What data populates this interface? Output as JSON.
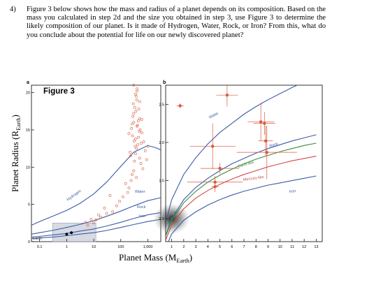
{
  "question": {
    "number": "4)",
    "text": "Figure 3 below shows how the mass and radius of a planet depends on its composition. Based on the mass you calculated in step 2d and the size you obtained in step 3, use Figure 3 to determine the likely composition of our planet. Is it made of Hydrogen, Water, Rock, or Iron? From this, what do you conclude about the potential for life on our newly discovered planet?"
  },
  "figure": {
    "title": "Figure 3",
    "y_axis_label": "Planet Radius (R",
    "y_axis_sub": "Earth",
    "x_axis_label": "Planet Mass (M",
    "x_axis_sub": "Earth",
    "panel_a_letter": "a",
    "panel_b_letter": "b",
    "colors": {
      "curves": "#3b5ba8",
      "earthlike": "#3c8a3c",
      "mercury": "#d24848",
      "points": "#d9593d"
    }
  },
  "chart_data": [
    {
      "type": "scatter",
      "panel": "a",
      "x_scale": "log",
      "xlim": [
        0.05,
        3000
      ],
      "ylim": [
        0,
        21
      ],
      "x_ticks": [
        "0.1",
        "1",
        "10",
        "100",
        "1,000"
      ],
      "y_ticks": [
        "0",
        "5",
        "10",
        "15",
        "20"
      ],
      "series_labels": [
        "Hydrogen",
        "Water",
        "Rock",
        "Iron"
      ],
      "corner_label": "Earth",
      "curves": [
        {
          "name": "Hydrogen",
          "x": [
            0.05,
            0.1,
            0.3,
            1,
            3,
            10,
            30,
            100,
            300,
            1000,
            2000,
            3000
          ],
          "y": [
            2.2,
            2.7,
            3.4,
            4.2,
            5.1,
            6.4,
            8.0,
            10.1,
            12.0,
            12.9,
            12.6,
            12.3
          ]
        },
        {
          "name": "Water",
          "x": [
            0.05,
            0.1,
            0.3,
            1,
            3,
            10,
            30,
            100,
            300,
            1000,
            3000
          ],
          "y": [
            1.0,
            1.2,
            1.5,
            1.9,
            2.3,
            2.8,
            3.4,
            4.1,
            4.8,
            5.5,
            5.9
          ]
        },
        {
          "name": "Rock",
          "x": [
            0.05,
            0.1,
            0.3,
            1,
            3,
            10,
            30,
            100,
            300,
            1000,
            3000
          ],
          "y": [
            0.6,
            0.7,
            0.9,
            1.1,
            1.4,
            1.7,
            2.1,
            2.6,
            3.1,
            3.6,
            3.9
          ]
        },
        {
          "name": "Iron",
          "x": [
            0.05,
            0.1,
            0.3,
            1,
            3,
            10,
            30,
            100,
            300,
            1000,
            3000
          ],
          "y": [
            0.4,
            0.5,
            0.6,
            0.8,
            1.0,
            1.2,
            1.5,
            1.9,
            2.3,
            2.7,
            3.0
          ]
        }
      ],
      "planets": {
        "x": [
          200,
          250,
          300,
          350,
          400,
          450,
          500,
          300,
          330,
          380,
          420,
          480,
          260,
          280,
          310,
          360,
          390,
          440,
          520,
          560,
          220,
          230,
          270,
          290,
          340,
          370,
          410,
          460,
          600,
          700,
          800,
          900,
          1000,
          500,
          550,
          650,
          320,
          300,
          350,
          400,
          260,
          240,
          600,
          200,
          180,
          150,
          120,
          90,
          70,
          50,
          40,
          30,
          25,
          18,
          15,
          12,
          10,
          8,
          6,
          5,
          300,
          400,
          500,
          350,
          380
        ],
        "y": [
          14.5,
          15.2,
          16.0,
          13.8,
          15.5,
          14.0,
          16.5,
          17.2,
          18.0,
          12.5,
          13.0,
          14.8,
          15.8,
          16.8,
          13.5,
          17.5,
          19.0,
          16.2,
          15.0,
          13.2,
          12.0,
          11.5,
          14.2,
          18.5,
          12.8,
          19.5,
          15.6,
          17.8,
          14.6,
          13.4,
          12.2,
          11.0,
          12.8,
          11.2,
          10.5,
          9.8,
          10.8,
          9.5,
          11.8,
          20.2,
          9.0,
          8.2,
          16.4,
          7.2,
          6.6,
          7.8,
          6.0,
          5.4,
          4.8,
          4.0,
          6.2,
          3.8,
          4.5,
          3.3,
          3.6,
          2.9,
          2.5,
          3.0,
          2.2,
          2.6,
          21.0,
          20.5,
          18.8,
          19.8,
          8.6
        ]
      },
      "highlight": [
        {
          "x": 1,
          "y": 1
        },
        {
          "x": 1.5,
          "y": 1.2
        }
      ]
    },
    {
      "type": "scatter",
      "panel": "b",
      "xlim": [
        0.5,
        13.5
      ],
      "ylim": [
        0.7,
        2.75
      ],
      "x_ticks": [
        "1",
        "2",
        "3",
        "4",
        "5",
        "6",
        "7",
        "8",
        "9",
        "10",
        "11",
        "12",
        "13"
      ],
      "y_ticks": [
        "1.0",
        "1.5",
        "2.0",
        "2.5"
      ],
      "series_labels": [
        "Water",
        "Rock",
        "Earth-like",
        "Mercury-like",
        "Iron"
      ],
      "curves": [
        {
          "name": "Water",
          "x": [
            0.5,
            1,
            2,
            3,
            4,
            5,
            6,
            7,
            8,
            9,
            10,
            11,
            12,
            13
          ],
          "y": [
            0.95,
            1.25,
            1.58,
            1.8,
            1.98,
            2.13,
            2.25,
            2.37,
            2.47,
            2.56,
            2.64,
            2.72,
            2.79,
            2.85
          ]
        },
        {
          "name": "Rock",
          "x": [
            0.5,
            1,
            2,
            3,
            4,
            5,
            6,
            7,
            8,
            9,
            10,
            11,
            12,
            13
          ],
          "y": [
            0.78,
            1.0,
            1.25,
            1.41,
            1.53,
            1.63,
            1.72,
            1.79,
            1.86,
            1.92,
            1.97,
            2.02,
            2.06,
            2.1
          ]
        },
        {
          "name": "Earth-like",
          "x": [
            0.5,
            1,
            2,
            3,
            4,
            5,
            6,
            7,
            8,
            9,
            10,
            11,
            12,
            13
          ],
          "y": [
            0.77,
            0.98,
            1.21,
            1.36,
            1.48,
            1.57,
            1.65,
            1.72,
            1.78,
            1.83,
            1.88,
            1.92,
            1.96,
            1.99
          ]
        },
        {
          "name": "Mercury-like",
          "x": [
            0.5,
            1,
            2,
            3,
            4,
            5,
            6,
            7,
            8,
            9,
            10,
            11,
            12,
            13
          ],
          "y": [
            0.72,
            0.92,
            1.13,
            1.27,
            1.37,
            1.45,
            1.52,
            1.58,
            1.63,
            1.68,
            1.72,
            1.76,
            1.79,
            1.82
          ]
        },
        {
          "name": "Iron",
          "x": [
            0.5,
            1,
            2,
            3,
            4,
            5,
            6,
            7,
            8,
            9,
            10,
            11,
            12,
            13
          ],
          "y": [
            0.62,
            0.8,
            0.98,
            1.09,
            1.18,
            1.25,
            1.31,
            1.36,
            1.4,
            1.44,
            1.47,
            1.5,
            1.53,
            1.56
          ]
        }
      ],
      "planets": [
        {
          "x": 1.7,
          "y": 2.48,
          "xerr": 0.3,
          "yerr": 0.03
        },
        {
          "x": 5.6,
          "y": 2.62,
          "xerr": 0.9,
          "yerr": 0.15
        },
        {
          "x": 8.4,
          "y": 2.27,
          "xerr": 1.1,
          "yerr": 0.25
        },
        {
          "x": 8.7,
          "y": 2.25,
          "xerr": 0.9,
          "yerr": 0.15
        },
        {
          "x": 8.8,
          "y": 2.02,
          "xerr": 0.6,
          "yerr": 0.2
        },
        {
          "x": 4.4,
          "y": 1.95,
          "xerr": 1.9,
          "yerr": 0.3
        },
        {
          "x": 8.9,
          "y": 1.87,
          "xerr": 2.5,
          "yerr": 0.35
        },
        {
          "x": 5.0,
          "y": 1.66,
          "xerr": 1.6,
          "yerr": 0.07
        },
        {
          "x": 4.6,
          "y": 1.48,
          "xerr": 2.3,
          "yerr": 0.08
        },
        {
          "x": 4.6,
          "y": 1.42,
          "xerr": 0.3,
          "yerr": 0.07
        }
      ],
      "kepler": [
        {
          "x": 1.0,
          "y": 1.0
        },
        {
          "x": 0.82,
          "y": 0.95
        },
        {
          "x": 1.3,
          "y": 1.08
        }
      ]
    }
  ]
}
